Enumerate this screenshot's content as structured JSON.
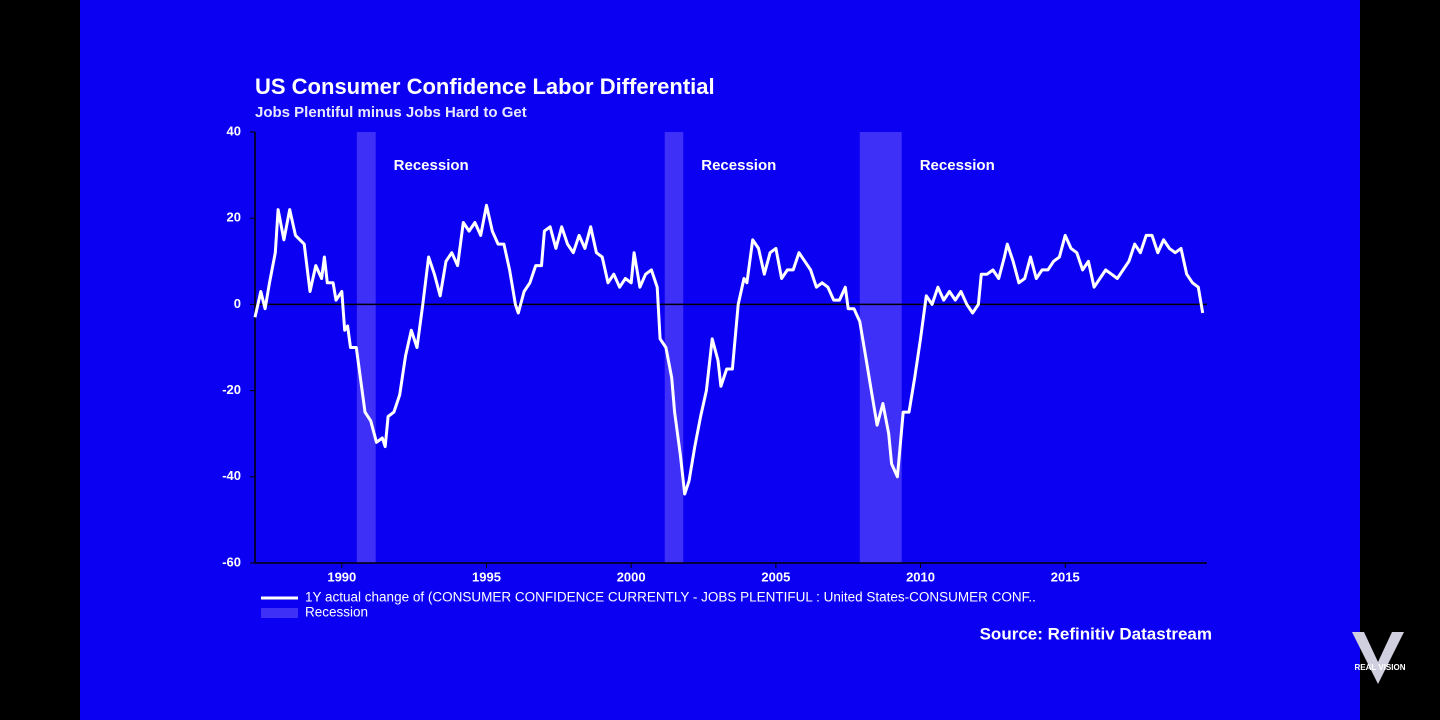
{
  "chart_data": {
    "type": "line",
    "title": "US Consumer Confidence Labor Differential",
    "subtitle": "Jobs Plentiful minus Jobs Hard to Get",
    "source": "Source: Refinitiv Datastream",
    "watermark": "REAL VISION",
    "background": "#0c00f2",
    "xlim": [
      1987,
      2019.9
    ],
    "ylim": [
      -60,
      40
    ],
    "xticks": [
      1990,
      1995,
      2000,
      2005,
      2010,
      2015
    ],
    "yticks": [
      -60,
      -40,
      -20,
      0,
      20,
      40
    ],
    "recessions": {
      "name": "Recession",
      "color": "#3f30f7",
      "periods": [
        {
          "start": 1990.52,
          "end": 1991.17,
          "label": "Recession"
        },
        {
          "start": 2001.16,
          "end": 2001.8,
          "label": "Recession"
        },
        {
          "start": 2007.9,
          "end": 2009.35,
          "label": "Recession"
        }
      ]
    },
    "x": [
      1987.0,
      1987.2,
      1987.35,
      1987.5,
      1987.7,
      1987.8,
      1988.0,
      1988.2,
      1988.4,
      1988.7,
      1988.9,
      1989.1,
      1989.3,
      1989.4,
      1989.5,
      1989.7,
      1989.8,
      1990.0,
      1990.1,
      1990.2,
      1990.3,
      1990.5,
      1990.6,
      1990.8,
      1991.0,
      1991.2,
      1991.4,
      1991.5,
      1991.6,
      1991.8,
      1992.0,
      1992.2,
      1992.4,
      1992.6,
      1992.8,
      1993.0,
      1993.2,
      1993.4,
      1993.6,
      1993.8,
      1994.0,
      1994.2,
      1994.4,
      1994.6,
      1994.8,
      1995.0,
      1995.2,
      1995.4,
      1995.6,
      1995.8,
      1996.0,
      1996.1,
      1996.3,
      1996.5,
      1996.7,
      1996.9,
      1997.0,
      1997.2,
      1997.4,
      1997.6,
      1997.8,
      1998.0,
      1998.2,
      1998.4,
      1998.6,
      1998.8,
      1999.0,
      1999.2,
      1999.4,
      1999.6,
      1999.8,
      2000.0,
      2000.1,
      2000.3,
      2000.5,
      2000.7,
      2000.9,
      2001.0,
      2001.2,
      2001.4,
      2001.5,
      2001.7,
      2001.85,
      2002.0,
      2002.2,
      2002.4,
      2002.6,
      2002.8,
      2003.0,
      2003.1,
      2003.3,
      2003.5,
      2003.7,
      2003.9,
      2004.0,
      2004.2,
      2004.4,
      2004.6,
      2004.8,
      2005.0,
      2005.2,
      2005.4,
      2005.6,
      2005.8,
      2006.0,
      2006.2,
      2006.4,
      2006.6,
      2006.8,
      2007.0,
      2007.2,
      2007.4,
      2007.5,
      2007.7,
      2007.9,
      2008.1,
      2008.3,
      2008.5,
      2008.7,
      2008.9,
      2009.0,
      2009.2,
      2009.4,
      2009.6,
      2009.8,
      2010.0,
      2010.2,
      2010.4,
      2010.6,
      2010.8,
      2011.0,
      2011.2,
      2011.4,
      2011.6,
      2011.8,
      2012.0,
      2012.1,
      2012.3,
      2012.5,
      2012.7,
      2012.9,
      2013.0,
      2013.2,
      2013.4,
      2013.6,
      2013.8,
      2014.0,
      2014.2,
      2014.4,
      2014.6,
      2014.8,
      2015.0,
      2015.2,
      2015.4,
      2015.6,
      2015.8,
      2016.0,
      2016.2,
      2016.4,
      2016.6,
      2016.8,
      2017.0,
      2017.2,
      2017.4,
      2017.6,
      2017.8,
      2018.0,
      2018.2,
      2018.4,
      2018.6,
      2018.8,
      2019.0,
      2019.2,
      2019.4,
      2019.6,
      2019.75
    ],
    "series": [
      {
        "name": "1Y actual change of (CONSUMER CONFIDENCE CURRENTLY - JOBS PLENTIFUL : United States-CONSUMER CONF..",
        "color": "#ffffff",
        "values": [
          -3,
          3,
          -1,
          5,
          12,
          22,
          15,
          22,
          16,
          14,
          3,
          9,
          6,
          11,
          5,
          5,
          1,
          3,
          -6,
          -5,
          -10,
          -10,
          -15,
          -25,
          -27,
          -32,
          -31,
          -33,
          -26,
          -25,
          -21,
          -12,
          -6,
          -10,
          0,
          11,
          7,
          2,
          10,
          12,
          9,
          19,
          17,
          19,
          16,
          23,
          17,
          14,
          14,
          8,
          0,
          -2,
          3,
          5,
          9,
          9,
          17,
          18,
          13,
          18,
          14,
          12,
          16,
          13,
          18,
          12,
          11,
          5,
          7,
          4,
          6,
          5,
          12,
          4,
          7,
          8,
          4,
          -8,
          -10,
          -17,
          -25,
          -35,
          -44,
          -41,
          -33,
          -26,
          -20,
          -8,
          -13,
          -19,
          -15,
          -15,
          0,
          6,
          5,
          15,
          13,
          7,
          12,
          13,
          6,
          8,
          8,
          12,
          10,
          8,
          4,
          5,
          4,
          1,
          1,
          4,
          -1,
          -1,
          -4,
          -12,
          -20,
          -28,
          -23,
          -30,
          -37,
          -40,
          -25,
          -25,
          -17,
          -8,
          2,
          0,
          4,
          1,
          3,
          1,
          3,
          0,
          -2,
          0,
          7,
          7,
          8,
          6,
          11,
          14,
          10,
          5,
          6,
          11,
          6,
          8,
          8,
          10,
          11,
          16,
          13,
          12,
          8,
          10,
          4,
          6,
          8,
          7,
          6,
          8,
          10,
          14,
          12,
          16,
          16,
          12,
          15,
          13,
          12,
          13,
          7,
          5,
          4,
          -2
        ]
      }
    ]
  }
}
